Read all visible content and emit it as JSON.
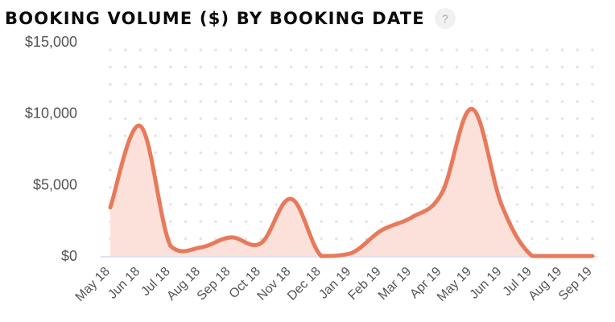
{
  "header": {
    "title": "BOOKING VOLUME ($) BY BOOKING DATE",
    "help_glyph": "?"
  },
  "colors": {
    "line": "#E8795A",
    "area": "#FBE1DA",
    "grid_dot": "#E3E3E3",
    "axis": "#CFCFEA",
    "tick_text": "#555555"
  },
  "chart_data": {
    "type": "area",
    "title": "BOOKING VOLUME ($) BY BOOKING DATE",
    "xlabel": "",
    "ylabel": "",
    "categories": [
      "May 18",
      "Jun 18",
      "Jul 18",
      "Aug 18",
      "Sep 18",
      "Oct 18",
      "Nov 18",
      "Dec 18",
      "Jan 19",
      "Feb 19",
      "Mar 19",
      "Apr 19",
      "May 19",
      "Jun 19",
      "Jul 19",
      "Aug 19",
      "Sep 19"
    ],
    "values": [
      3400,
      9100,
      700,
      600,
      1300,
      900,
      4000,
      0,
      200,
      1800,
      2700,
      4400,
      10300,
      3500,
      0,
      0,
      0
    ],
    "ylim": [
      0,
      15000
    ],
    "yticks": [
      0,
      5000,
      10000,
      15000
    ],
    "ytick_labels": [
      "$0",
      "$5,000",
      "$10,000",
      "$15,000"
    ],
    "grid": "dotted",
    "legend": "none"
  }
}
